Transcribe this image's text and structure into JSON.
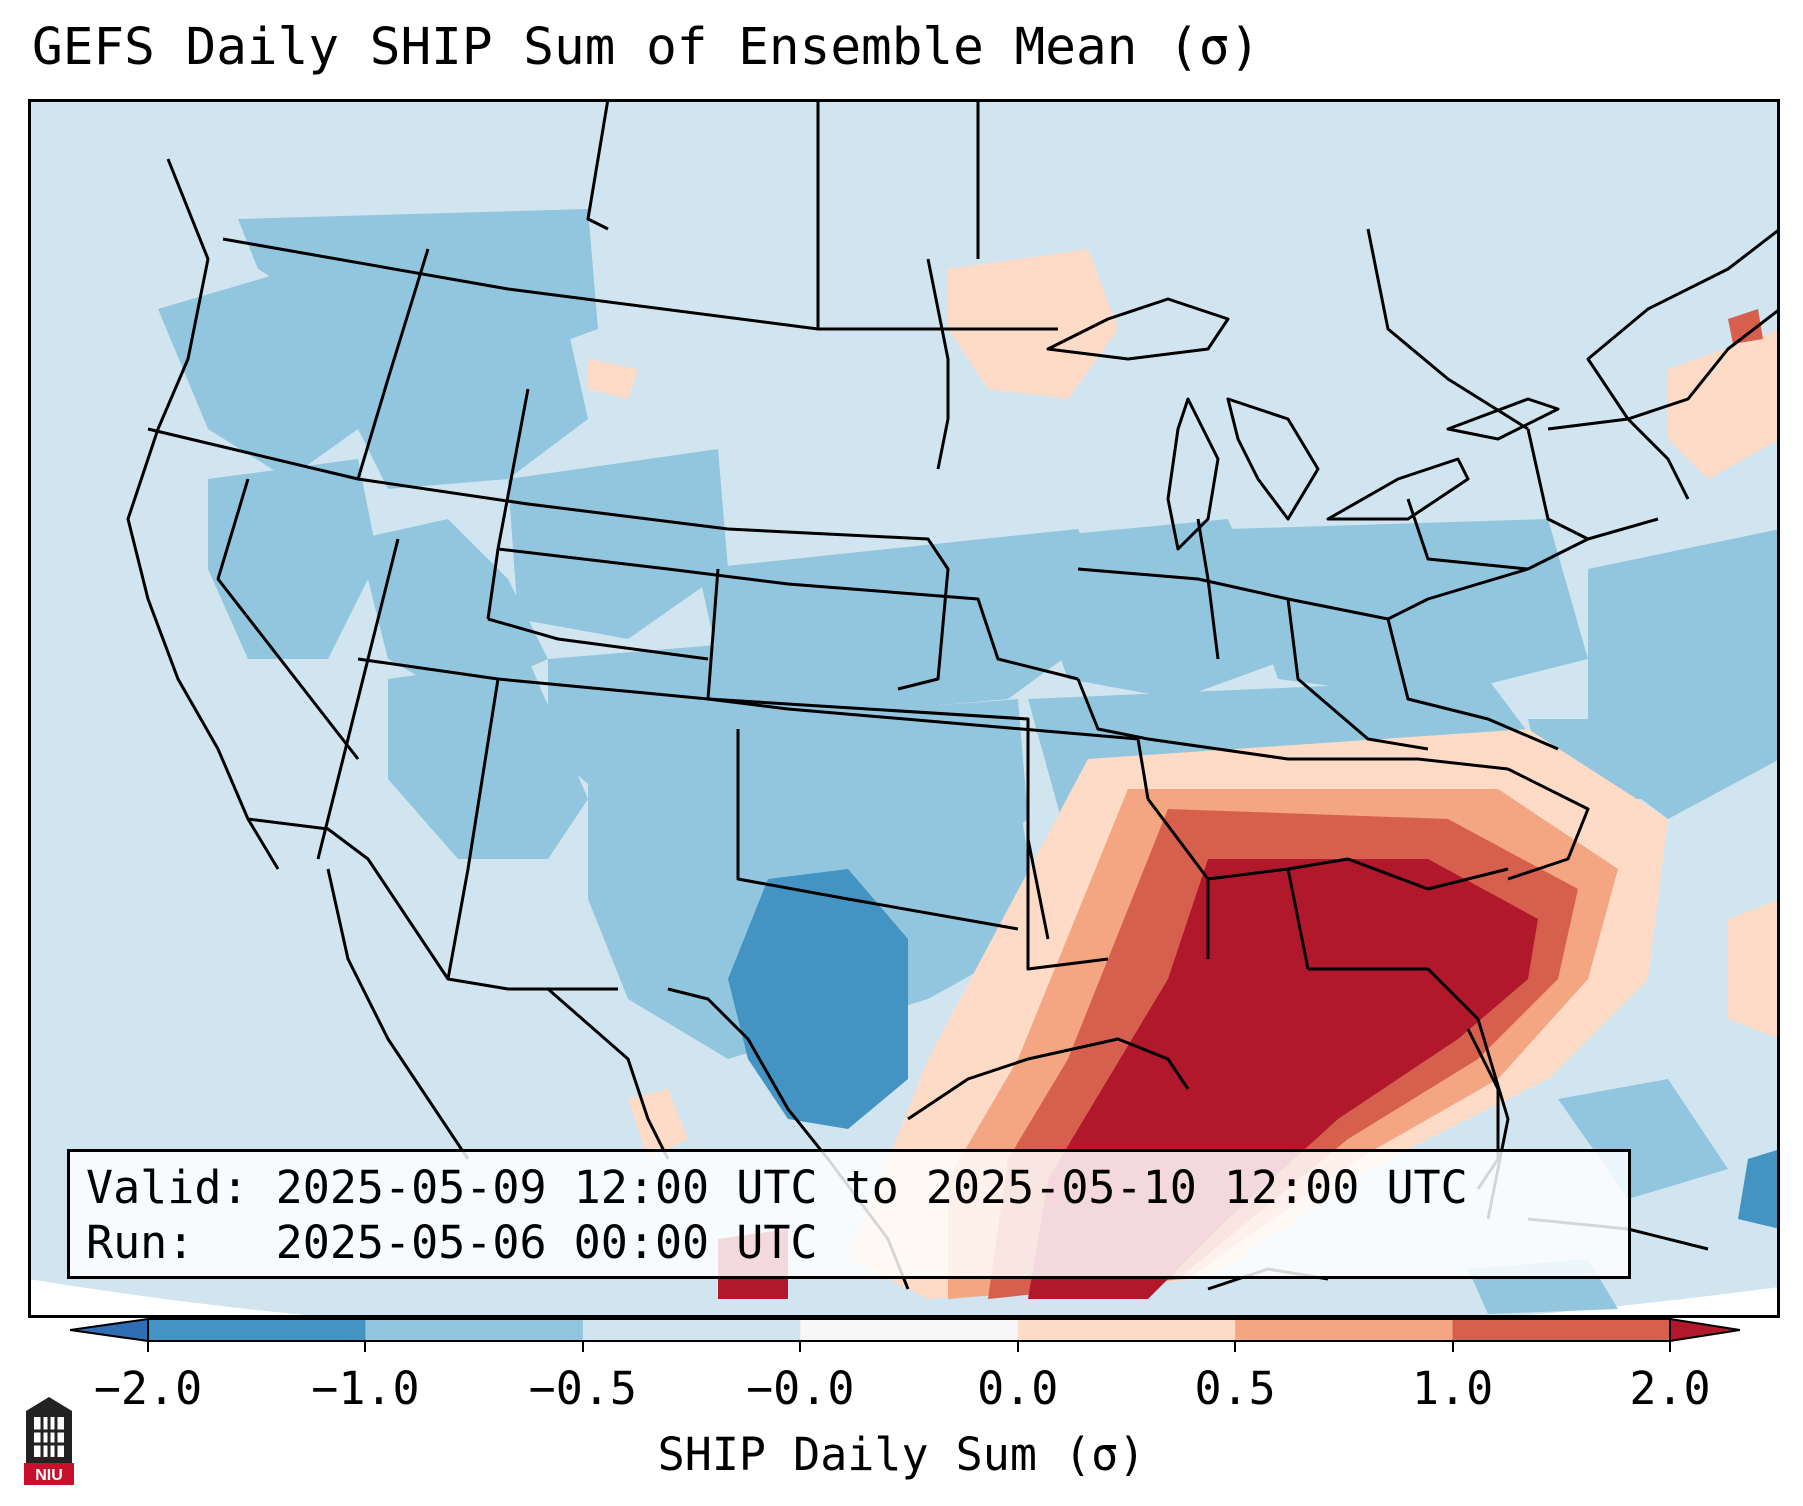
{
  "title": "GEFS Daily SHIP Sum of Ensemble Mean (σ)",
  "info": {
    "valid_label": "Valid:",
    "valid_value": "2025-05-09 12:00 UTC to 2025-05-10 12:00 UTC",
    "run_label": "Run:",
    "run_value": "2025-05-06 00:00 UTC"
  },
  "colorbar": {
    "title": "SHIP Daily Sum (σ)",
    "tick_labels": [
      "−2.0",
      "−1.0",
      "−0.5",
      "−0.0",
      "0.0",
      "0.5",
      "1.0",
      "2.0"
    ],
    "bins": [
      {
        "range": "< −2.0",
        "color": "#2f6db5"
      },
      {
        "range": "−2.0 to −1.0",
        "color": "#4393c3"
      },
      {
        "range": "−1.0 to −0.5",
        "color": "#92c5de"
      },
      {
        "range": "−0.5 to −0.0",
        "color": "#d1e5f0"
      },
      {
        "range": "−0.0 to 0.0",
        "color": "#f7f7f7"
      },
      {
        "range": "0.0 to 0.5",
        "color": "#fddbc7"
      },
      {
        "range": "0.5 to 1.0",
        "color": "#f4a582"
      },
      {
        "range": "1.0 to 2.0",
        "color": "#d6604d"
      },
      {
        "range": "> 2.0",
        "color": "#b2182b"
      }
    ]
  },
  "map": {
    "region": "Contiguous United States",
    "positive_anomaly_area": "Gulf of Mexico and southeastern United States",
    "negative_anomaly_area": "central and southern Texas"
  },
  "logo": {
    "text": "NIU",
    "color": "#c8102e"
  }
}
